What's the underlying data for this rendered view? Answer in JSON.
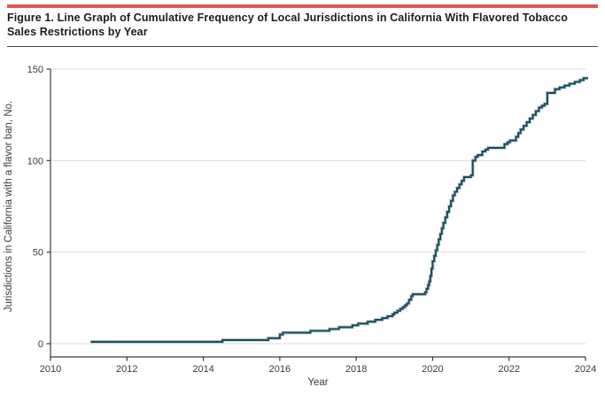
{
  "figure": {
    "title": "Figure 1. Line Graph of Cumulative Frequency of Local Jurisdictions in California With Flavored Tobacco Sales Restrictions by Year"
  },
  "colors": {
    "accent_bar": "#e4564a",
    "line": "#1b4d5e",
    "line_halo": "#c6cfd2",
    "axis": "#363b41",
    "grid": "#d9dbdc",
    "text": "#333b44"
  },
  "chart_data": {
    "type": "line",
    "step": true,
    "title": "Cumulative frequency of local jurisdictions in California with flavored tobacco sales restrictions by year",
    "xlabel": "Year",
    "ylabel": "Jurisdictions in California with a flavor ban, No.",
    "xlim": [
      2010,
      2024.1
    ],
    "ylim": [
      0,
      150
    ],
    "x_ticks": [
      2010,
      2012,
      2014,
      2016,
      2018,
      2020,
      2022,
      2024
    ],
    "y_ticks": [
      0,
      50,
      100,
      150
    ],
    "grid": "horizontal",
    "legend": "none",
    "series": [
      {
        "name": "Jurisdictions with a flavor ban",
        "points": [
          [
            2011.05,
            1
          ],
          [
            2014.5,
            2
          ],
          [
            2015.7,
            3
          ],
          [
            2016.0,
            5
          ],
          [
            2016.08,
            6
          ],
          [
            2016.8,
            7
          ],
          [
            2017.3,
            8
          ],
          [
            2017.55,
            9
          ],
          [
            2017.9,
            10
          ],
          [
            2018.05,
            11
          ],
          [
            2018.3,
            12
          ],
          [
            2018.5,
            13
          ],
          [
            2018.68,
            14
          ],
          [
            2018.82,
            15
          ],
          [
            2018.95,
            16
          ],
          [
            2019.0,
            17
          ],
          [
            2019.08,
            18
          ],
          [
            2019.15,
            19
          ],
          [
            2019.22,
            20
          ],
          [
            2019.28,
            21
          ],
          [
            2019.33,
            22
          ],
          [
            2019.38,
            24
          ],
          [
            2019.44,
            26
          ],
          [
            2019.48,
            27
          ],
          [
            2019.8,
            28
          ],
          [
            2019.84,
            30
          ],
          [
            2019.88,
            32
          ],
          [
            2019.91,
            34
          ],
          [
            2019.94,
            37
          ],
          [
            2019.97,
            41
          ],
          [
            2020.0,
            45
          ],
          [
            2020.04,
            48
          ],
          [
            2020.08,
            51
          ],
          [
            2020.12,
            54
          ],
          [
            2020.16,
            57
          ],
          [
            2020.2,
            60
          ],
          [
            2020.24,
            63
          ],
          [
            2020.28,
            66
          ],
          [
            2020.33,
            69
          ],
          [
            2020.38,
            72
          ],
          [
            2020.43,
            75
          ],
          [
            2020.48,
            78
          ],
          [
            2020.53,
            81
          ],
          [
            2020.58,
            83
          ],
          [
            2020.64,
            85
          ],
          [
            2020.7,
            87
          ],
          [
            2020.76,
            89
          ],
          [
            2020.82,
            91
          ],
          [
            2021.0,
            92
          ],
          [
            2021.05,
            100
          ],
          [
            2021.12,
            102
          ],
          [
            2021.18,
            103
          ],
          [
            2021.3,
            105
          ],
          [
            2021.38,
            106
          ],
          [
            2021.45,
            107
          ],
          [
            2021.88,
            109
          ],
          [
            2021.96,
            110
          ],
          [
            2022.02,
            111
          ],
          [
            2022.18,
            113
          ],
          [
            2022.24,
            115
          ],
          [
            2022.3,
            117
          ],
          [
            2022.38,
            119
          ],
          [
            2022.46,
            121
          ],
          [
            2022.54,
            123
          ],
          [
            2022.62,
            125
          ],
          [
            2022.7,
            127
          ],
          [
            2022.78,
            129
          ],
          [
            2022.86,
            130
          ],
          [
            2022.93,
            131
          ],
          [
            2023.0,
            137
          ],
          [
            2023.2,
            139
          ],
          [
            2023.32,
            140
          ],
          [
            2023.45,
            141
          ],
          [
            2023.58,
            142
          ],
          [
            2023.72,
            143
          ],
          [
            2023.85,
            144
          ],
          [
            2023.95,
            145
          ],
          [
            2024.07,
            145
          ]
        ]
      }
    ]
  }
}
